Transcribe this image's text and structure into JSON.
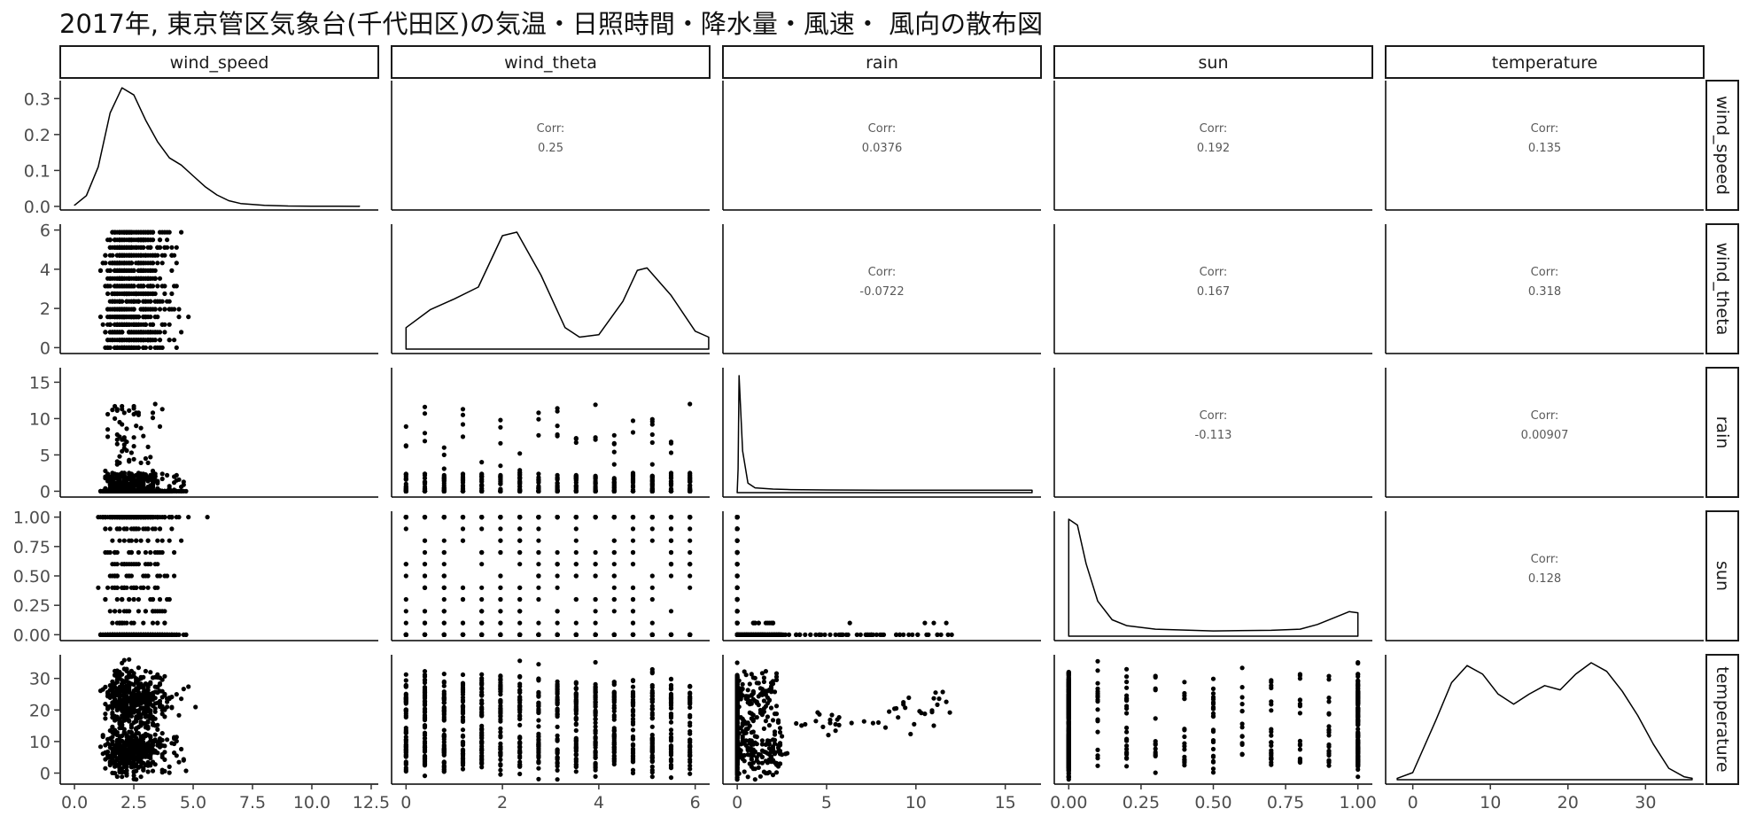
{
  "chart_data": {
    "type": "scatter",
    "title": "2017年, 東京管区気象台(千代田区)の気温・日照時間・降水量・風速・ 風向の散布図",
    "variables": [
      "wind_speed",
      "wind_theta",
      "rain",
      "sun",
      "temperature"
    ],
    "axes": {
      "wind_speed": {
        "range": [
          -0.6,
          12.8
        ],
        "ticks": [
          "0.0",
          "2.5",
          "5.0",
          "7.5",
          "10.0",
          "12.5"
        ],
        "tick_values": [
          0,
          2.5,
          5,
          7.5,
          10,
          12.5
        ]
      },
      "wind_theta": {
        "range": [
          -0.3,
          6.3
        ],
        "ticks": [
          "0",
          "2",
          "4",
          "6"
        ],
        "tick_values": [
          0,
          2,
          4,
          6
        ]
      },
      "rain": {
        "range": [
          -0.8,
          17.0
        ],
        "ticks": [
          "0",
          "5",
          "10",
          "15"
        ],
        "tick_values": [
          0,
          5,
          10,
          15
        ]
      },
      "sun": {
        "range": [
          -0.05,
          1.05
        ],
        "ticks": [
          "0.00",
          "0.25",
          "0.50",
          "0.75",
          "1.00"
        ],
        "tick_values": [
          0,
          0.25,
          0.5,
          0.75,
          1.0
        ]
      },
      "temperature": {
        "range": [
          -3.5,
          37.5
        ],
        "ticks": [
          "0",
          "10",
          "20",
          "30"
        ],
        "tick_values": [
          0,
          10,
          20,
          30
        ]
      }
    },
    "density_y_axis": {
      "range": [
        -0.01,
        0.35
      ],
      "ticks": [
        "0.0",
        "0.1",
        "0.2",
        "0.3"
      ],
      "tick_values": [
        0,
        0.1,
        0.2,
        0.3
      ]
    },
    "density_curves": {
      "wind_speed": [
        [
          0,
          0.003
        ],
        [
          0.5,
          0.03
        ],
        [
          1.0,
          0.11
        ],
        [
          1.5,
          0.26
        ],
        [
          2.0,
          0.33
        ],
        [
          2.5,
          0.31
        ],
        [
          3.0,
          0.24
        ],
        [
          3.5,
          0.18
        ],
        [
          4.0,
          0.135
        ],
        [
          4.5,
          0.115
        ],
        [
          5.0,
          0.085
        ],
        [
          5.5,
          0.055
        ],
        [
          6.0,
          0.032
        ],
        [
          6.5,
          0.016
        ],
        [
          7.0,
          0.008
        ],
        [
          8.0,
          0.003
        ],
        [
          9.0,
          0.001
        ],
        [
          10.0,
          0.0005
        ],
        [
          12.0,
          0.0002
        ]
      ],
      "wind_theta": [
        [
          0,
          0.18
        ],
        [
          0.5,
          0.33
        ],
        [
          1.0,
          0.42
        ],
        [
          1.5,
          0.52
        ],
        [
          2.0,
          0.95
        ],
        [
          2.3,
          0.98
        ],
        [
          2.8,
          0.62
        ],
        [
          3.3,
          0.18
        ],
        [
          3.6,
          0.1
        ],
        [
          4.0,
          0.12
        ],
        [
          4.5,
          0.4
        ],
        [
          4.8,
          0.66
        ],
        [
          5.0,
          0.68
        ],
        [
          5.5,
          0.45
        ],
        [
          6.0,
          0.15
        ],
        [
          6.28,
          0.1
        ]
      ],
      "rain": [
        [
          0,
          0.005
        ],
        [
          0.05,
          0.2
        ],
        [
          0.1,
          0.98
        ],
        [
          0.3,
          0.35
        ],
        [
          0.6,
          0.08
        ],
        [
          1.0,
          0.04
        ],
        [
          2,
          0.03
        ],
        [
          3,
          0.025
        ],
        [
          5,
          0.022
        ],
        [
          8,
          0.02
        ],
        [
          12,
          0.02
        ],
        [
          16.5,
          0.02
        ]
      ],
      "sun": [
        [
          0,
          1.0
        ],
        [
          0.03,
          0.95
        ],
        [
          0.06,
          0.62
        ],
        [
          0.1,
          0.3
        ],
        [
          0.15,
          0.14
        ],
        [
          0.2,
          0.09
        ],
        [
          0.3,
          0.06
        ],
        [
          0.5,
          0.045
        ],
        [
          0.7,
          0.05
        ],
        [
          0.8,
          0.06
        ],
        [
          0.86,
          0.1
        ],
        [
          0.92,
          0.16
        ],
        [
          0.97,
          0.21
        ],
        [
          1.0,
          0.2
        ]
      ],
      "temperature": [
        [
          -2,
          0.01
        ],
        [
          0,
          0.05
        ],
        [
          3,
          0.42
        ],
        [
          5,
          0.68
        ],
        [
          7,
          0.8
        ],
        [
          9,
          0.74
        ],
        [
          11,
          0.6
        ],
        [
          13,
          0.53
        ],
        [
          15,
          0.6
        ],
        [
          17,
          0.66
        ],
        [
          19,
          0.63
        ],
        [
          21,
          0.74
        ],
        [
          23,
          0.82
        ],
        [
          25,
          0.76
        ],
        [
          27,
          0.62
        ],
        [
          29,
          0.45
        ],
        [
          31,
          0.25
        ],
        [
          33,
          0.08
        ],
        [
          35,
          0.02
        ],
        [
          36,
          0.01
        ]
      ]
    },
    "correlations": [
      {
        "row": "wind_speed",
        "col": "wind_theta",
        "label": "Corr:",
        "value": "0.25"
      },
      {
        "row": "wind_speed",
        "col": "rain",
        "label": "Corr:",
        "value": "0.0376"
      },
      {
        "row": "wind_speed",
        "col": "sun",
        "label": "Corr:",
        "value": "0.192"
      },
      {
        "row": "wind_speed",
        "col": "temperature",
        "label": "Corr:",
        "value": "0.135"
      },
      {
        "row": "wind_theta",
        "col": "rain",
        "label": "Corr:",
        "value": "-0.0722"
      },
      {
        "row": "wind_theta",
        "col": "sun",
        "label": "Corr:",
        "value": "0.167"
      },
      {
        "row": "wind_theta",
        "col": "temperature",
        "label": "Corr:",
        "value": "0.318"
      },
      {
        "row": "rain",
        "col": "sun",
        "label": "Corr:",
        "value": "-0.113"
      },
      {
        "row": "rain",
        "col": "temperature",
        "label": "Corr:",
        "value": "0.00907"
      },
      {
        "row": "sun",
        "col": "temperature",
        "label": "Corr:",
        "value": "0.128"
      }
    ],
    "scatter_summary": {
      "wind_theta_levels": [
        0,
        0.39,
        0.79,
        1.18,
        1.57,
        1.96,
        2.36,
        2.75,
        3.14,
        3.53,
        3.93,
        4.32,
        4.71,
        5.11,
        5.5,
        5.89
      ],
      "sun_levels": [
        0,
        0.1,
        0.2,
        0.3,
        0.4,
        0.5,
        0.6,
        0.7,
        0.8,
        0.9,
        1.0
      ],
      "wind_speed_max": 12.3,
      "rain_max": 16.5,
      "temperature_range": [
        -2,
        36
      ]
    },
    "grid": false,
    "legend": "none"
  }
}
